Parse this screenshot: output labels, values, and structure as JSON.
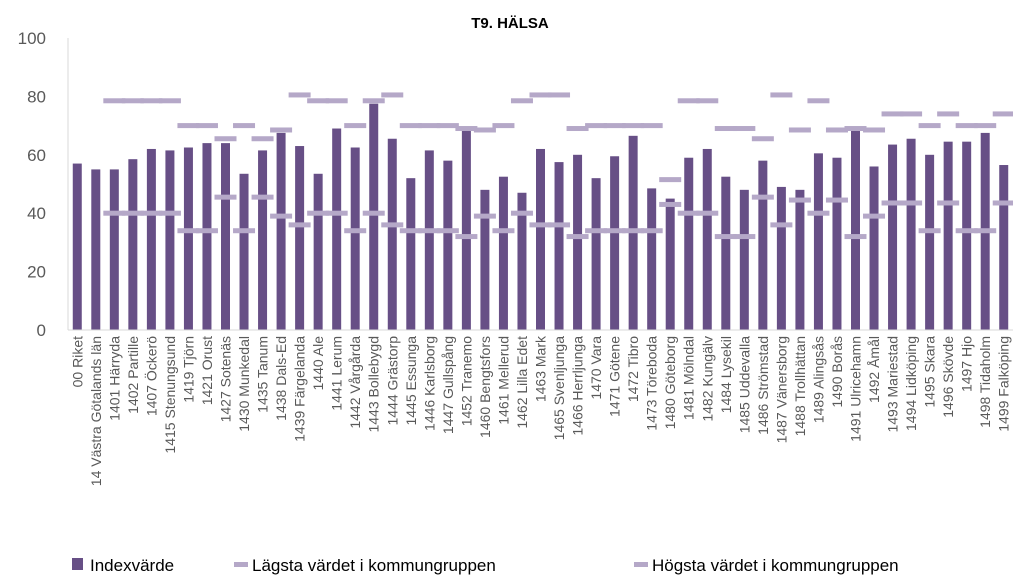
{
  "chart_data": {
    "type": "bar",
    "title": "T9. HÄLSA",
    "categories": [
      "00 Riket",
      "14 Västra Götalands län",
      "1401 Härryda",
      "1402 Partille",
      "1407 Öckerö",
      "1415 Stenungsund",
      "1419 Tjörn",
      "1421 Orust",
      "1427 Sotenäs",
      "1430 Munkedal",
      "1435 Tanum",
      "1438 Dals-Ed",
      "1439 Färgelanda",
      "1440 Ale",
      "1441 Lerum",
      "1442 Vårgårda",
      "1443 Bollebygd",
      "1444 Grästorp",
      "1445 Essunga",
      "1446 Karlsborg",
      "1447 Gullspång",
      "1452 Tranemo",
      "1460 Bengtsfors",
      "1461 Mellerud",
      "1462 Lilla Edet",
      "1463 Mark",
      "1465 Svenljunga",
      "1466 Herrljunga",
      "1470 Vara",
      "1471 Götene",
      "1472 Tibro",
      "1473 Töreboda",
      "1480 Göteborg",
      "1481 Mölndal",
      "1482 Kungälv",
      "1484 Lysekil",
      "1485 Uddevalla",
      "1486 Strömstad",
      "1487 Vänersborg",
      "1488 Trollhättan",
      "1489 Alingsås",
      "1490 Borås",
      "1491 Ulricehamn",
      "1492 Åmål",
      "1493 Mariestad",
      "1494 Lidköping",
      "1495 Skara",
      "1496 Skövde",
      "1497 Hjo",
      "1498 Tidaholm",
      "1499 Falköping"
    ],
    "series": [
      {
        "name": "Indexvärde",
        "color": "#674f86",
        "mark": "bar",
        "values": [
          57,
          55,
          55,
          58.5,
          62,
          61.5,
          62.5,
          64,
          64,
          53.5,
          61.5,
          67.5,
          63,
          53.5,
          69,
          62.5,
          77.5,
          65.5,
          52,
          61.5,
          58,
          68.5,
          48,
          52.5,
          47,
          62,
          57.5,
          60,
          52,
          59.5,
          66.5,
          48.5,
          45,
          59,
          62,
          52.5,
          48,
          58,
          49,
          48,
          60.5,
          59,
          68.5,
          56,
          63.5,
          65.5,
          60,
          64.5,
          64.5,
          67.5,
          56.5
        ]
      },
      {
        "name": "Lägsta värdet i kommungruppen",
        "color": "#b5a8c8",
        "mark": "dash",
        "values": [
          null,
          null,
          40,
          40,
          40,
          40,
          34,
          34,
          45.5,
          34,
          45.5,
          39,
          36,
          40,
          40,
          34,
          40,
          36,
          34,
          34,
          34,
          32,
          39,
          34,
          40,
          36,
          36,
          32,
          34,
          34,
          34,
          34,
          43,
          40,
          40,
          32,
          32,
          45.5,
          36,
          44.5,
          40,
          44.5,
          32,
          39,
          43.5,
          43.5,
          34,
          43.5,
          34,
          34,
          43.5
        ]
      },
      {
        "name": "Högsta värdet i kommungruppen",
        "color": "#b5a8c8",
        "mark": "dash",
        "values": [
          null,
          null,
          78.5,
          78.5,
          78.5,
          78.5,
          70,
          70,
          65.5,
          70,
          65.5,
          68.5,
          80.5,
          78.5,
          78.5,
          70,
          78.5,
          80.5,
          70,
          70,
          70,
          69,
          68.5,
          70,
          78.5,
          80.5,
          80.5,
          69,
          70,
          70,
          70,
          70,
          51.5,
          78.5,
          78.5,
          69,
          69,
          65.5,
          80.5,
          68.5,
          78.5,
          68.5,
          69,
          68.5,
          74,
          74,
          70,
          74,
          70,
          70,
          74
        ]
      }
    ],
    "ylim": [
      0,
      100
    ],
    "yticks": [
      0,
      20,
      40,
      60,
      80,
      100
    ],
    "grid": false,
    "legend": "bottom"
  }
}
